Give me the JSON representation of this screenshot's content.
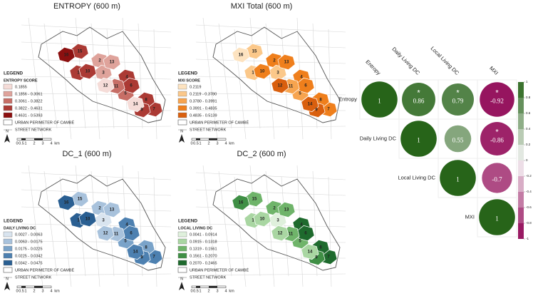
{
  "region_labels": [
    "1",
    "2",
    "3",
    "4",
    "5",
    "6",
    "7",
    "8",
    "9",
    "10",
    "11",
    "12",
    "13",
    "14",
    "15",
    "16"
  ],
  "scale_labels": [
    "0",
    "0.5",
    "1",
    "2",
    "3",
    "4",
    "km"
  ],
  "north": "N",
  "legend_heading": "LEGEND",
  "legend_extras": [
    "URBAN PERIMETER OF CAMBÉ",
    "STREET NETWORK"
  ],
  "maps": [
    {
      "title": "ENTROPY (600 m)",
      "legend_title": "ENTROPY SCORE",
      "classes": [
        {
          "label": "0.1855",
          "color": "#f5dcd8"
        },
        {
          "label": "0.1856 - 0.3061",
          "color": "#dfa39b"
        },
        {
          "label": "0.3061 - 0.3822",
          "color": "#c76e66"
        },
        {
          "label": "0.3822 - 0.4631",
          "color": "#ab3a34"
        },
        {
          "label": "0.4631 - 0.5393",
          "color": "#8c1010"
        }
      ],
      "region_colors": [
        "#ab3a34",
        "#dfa39b",
        "#dfa39b",
        "#ab3a34",
        "#c76e66",
        "#ab3a34",
        "#ab3a34",
        "#ab3a34",
        "#ab3a34",
        "#ab3a34",
        "#c76e66",
        "#f5dcd8",
        "#dfa39b",
        "#f5dcd8",
        "#ab3a34",
        "#8c1010"
      ]
    },
    {
      "title": "MXI Total (600 m)",
      "legend_title": "MXI SCORE",
      "classes": [
        {
          "label": "0.2119",
          "color": "#fde3c0"
        },
        {
          "label": "0.2119 - 0.3780",
          "color": "#fbc88a"
        },
        {
          "label": "0.3780 - 0.3991",
          "color": "#f7a44f"
        },
        {
          "label": "0.3991 - 0.4835",
          "color": "#ef7f1c"
        },
        {
          "label": "0.4835 - 0.5139",
          "color": "#d95f0e"
        }
      ],
      "region_colors": [
        "#fbc88a",
        "#ef7f1c",
        "#fbc88a",
        "#ef7f1c",
        "#f7a44f",
        "#ef7f1c",
        "#ef7f1c",
        "#ef7f1c",
        "#d95f0e",
        "#ef7f1c",
        "#f7a44f",
        "#d95f0e",
        "#ef7f1c",
        "#d95f0e",
        "#fbc88a",
        "#fde3c0"
      ]
    },
    {
      "title": "DC_1 (600 m)",
      "legend_title": "DAILY LIVING DC",
      "classes": [
        {
          "label": "0.0027 - 0.0063",
          "color": "#d9e4ef"
        },
        {
          "label": "0.0063 - 0.0175",
          "color": "#a8c2dc"
        },
        {
          "label": "0.0175 - 0.0225",
          "color": "#7aa3c9"
        },
        {
          "label": "0.0225 - 0.0342",
          "color": "#4d80b0"
        },
        {
          "label": "0.0342 - 0.0475",
          "color": "#2a5f92"
        }
      ],
      "region_colors": [
        "#2a5f92",
        "#a8c2dc",
        "#d9e4ef",
        "#4d80b0",
        "#7aa3c9",
        "#4d80b0",
        "#4d80b0",
        "#7aa3c9",
        "#4d80b0",
        "#2a5f92",
        "#a8c2dc",
        "#a8c2dc",
        "#a8c2dc",
        "#4d80b0",
        "#a8c2dc",
        "#2a5f92"
      ]
    },
    {
      "title": "DC_2 (600 m)",
      "legend_title": "LOCAL LIVING DC",
      "classes": [
        {
          "label": "0.0041 - 0.0914",
          "color": "#dff0dc"
        },
        {
          "label": "0.0915 - 0.1318",
          "color": "#a9d6a2"
        },
        {
          "label": "0.1319 - 0.1561",
          "color": "#6fb46a"
        },
        {
          "label": "0.1561 - 0.2070",
          "color": "#3f8f45"
        },
        {
          "label": "0.2070 - 0.2465",
          "color": "#1e6a2d"
        }
      ],
      "region_colors": [
        "#a9d6a2",
        "#6fb46a",
        "#dff0dc",
        "#1e6a2d",
        "#6fb46a",
        "#1e6a2d",
        "#1e6a2d",
        "#1e6a2d",
        "#3f8f45",
        "#a9d6a2",
        "#6fb46a",
        "#a9d6a2",
        "#6fb46a",
        "#a9d6a2",
        "#6fb46a",
        "#3f8f45"
      ]
    }
  ],
  "chart_data": {
    "type": "correlogram",
    "variables": [
      "Entropy",
      "Daily Living DC",
      "Local Living DC",
      "MXI"
    ],
    "matrix": [
      [
        1,
        0.86,
        0.79,
        -0.92
      ],
      [
        null,
        1,
        0.55,
        -0.86
      ],
      [
        null,
        null,
        1,
        -0.7
      ],
      [
        null,
        null,
        null,
        1
      ]
    ],
    "stars": [
      [
        null,
        "*",
        "*",
        "*"
      ],
      [
        null,
        null,
        null,
        "*"
      ],
      [
        null,
        null,
        null,
        null
      ],
      [
        null,
        null,
        null,
        null
      ]
    ],
    "colors": {
      "negative": "#8e0152",
      "zero": "#f7f7f7",
      "positive": "#276419"
    },
    "ylim": [
      -1,
      1
    ],
    "yticks": [
      1,
      0.8,
      0.6,
      0.4,
      0.2,
      0,
      -0.2,
      -0.4,
      -0.6,
      -0.8,
      -1
    ]
  }
}
